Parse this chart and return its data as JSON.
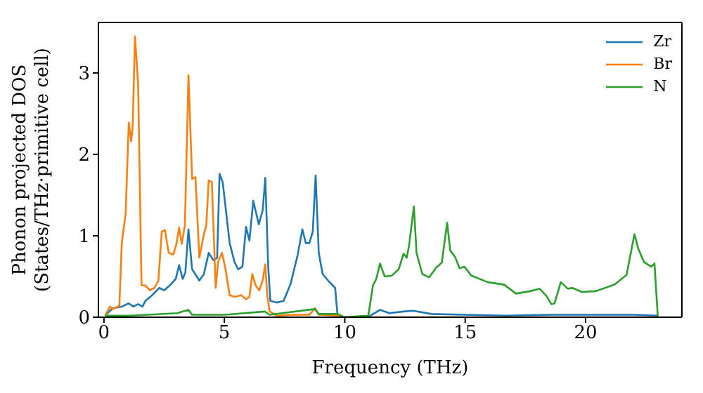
{
  "chart_data": {
    "type": "line",
    "xlabel": "Frequency (THz)",
    "ylabel": "Phonon projected DOS\n(States/THz·primitive cell)",
    "xlim": [
      -0.23,
      24
    ],
    "ylim": [
      0,
      3.62
    ],
    "xticks": [
      0,
      5,
      10,
      15,
      20
    ],
    "yticks": [
      0,
      1,
      2,
      3
    ],
    "legend": "top right",
    "marker": "none",
    "line_style": "solid",
    "series": [
      {
        "name": "Zr",
        "color": "#1f77b4",
        "x": [
          0.05,
          0.36,
          0.74,
          1.03,
          1.22,
          1.42,
          1.6,
          1.72,
          2.0,
          2.3,
          2.5,
          2.8,
          2.98,
          3.12,
          3.27,
          3.38,
          3.51,
          3.66,
          3.96,
          4.15,
          4.35,
          4.54,
          4.7,
          4.8,
          4.93,
          5.22,
          5.42,
          5.57,
          5.75,
          5.9,
          6.04,
          6.2,
          6.43,
          6.59,
          6.7,
          6.82,
          6.91,
          7.17,
          7.46,
          7.75,
          8.04,
          8.24,
          8.38,
          8.53,
          8.67,
          8.79,
          8.92,
          9.08,
          9.31,
          9.6,
          9.7,
          10.0,
          11.0,
          11.07,
          11.46,
          11.85,
          12.44,
          12.83,
          13.6,
          14.97,
          16.7,
          18.66,
          21.98,
          22.95,
          23.0
        ],
        "values": [
          0.02,
          0.11,
          0.13,
          0.17,
          0.13,
          0.16,
          0.13,
          0.2,
          0.27,
          0.36,
          0.33,
          0.41,
          0.47,
          0.64,
          0.47,
          0.55,
          1.08,
          0.59,
          0.45,
          0.53,
          0.79,
          0.7,
          0.73,
          1.76,
          1.66,
          0.91,
          0.68,
          0.59,
          0.62,
          1.11,
          0.94,
          1.43,
          1.14,
          1.31,
          1.71,
          0.62,
          0.2,
          0.18,
          0.2,
          0.41,
          0.76,
          1.08,
          0.91,
          0.91,
          1.05,
          1.74,
          0.79,
          0.53,
          0.45,
          0.36,
          0.02,
          0,
          0,
          0.02,
          0.09,
          0.05,
          0.07,
          0.08,
          0.04,
          0.03,
          0.02,
          0.03,
          0.03,
          0.02,
          0
        ]
      },
      {
        "name": "Br",
        "color": "#ff7f0e",
        "x": [
          0.05,
          0.25,
          0.38,
          0.64,
          0.74,
          0.9,
          1.03,
          1.13,
          1.19,
          1.29,
          1.42,
          1.56,
          1.72,
          1.91,
          2.1,
          2.26,
          2.4,
          2.53,
          2.69,
          2.88,
          3.01,
          3.12,
          3.23,
          3.36,
          3.51,
          3.66,
          3.8,
          3.96,
          4.15,
          4.25,
          4.35,
          4.48,
          4.64,
          4.74,
          4.9,
          5.03,
          5.22,
          5.42,
          5.7,
          5.9,
          6.04,
          6.16,
          6.3,
          6.45,
          6.59,
          6.7,
          6.78,
          6.88,
          7.17,
          7.95,
          8.53,
          8.77,
          8.92,
          9.7,
          10.0,
          23.0
        ],
        "values": [
          0.02,
          0.13,
          0.1,
          0.14,
          0.91,
          1.27,
          2.39,
          2.16,
          2.33,
          3.45,
          2.85,
          0.39,
          0.39,
          0.33,
          0.36,
          0.45,
          1.05,
          1.07,
          0.79,
          0.77,
          0.9,
          1.1,
          0.9,
          1.13,
          2.97,
          1.7,
          1.72,
          0.73,
          1.02,
          1.13,
          1.68,
          1.66,
          0.36,
          0.68,
          0.79,
          0.62,
          0.27,
          0.25,
          0.27,
          0.22,
          0.25,
          0.53,
          0.39,
          0.33,
          0.45,
          0.65,
          0.27,
          0.07,
          0.02,
          0.03,
          0.03,
          0.11,
          0.03,
          0.02,
          0,
          0
        ]
      },
      {
        "name": "N",
        "color": "#2ca02c",
        "x": [
          0.05,
          1.1,
          3.04,
          3.51,
          3.66,
          5.03,
          6.68,
          6.88,
          8.75,
          8.92,
          9.7,
          9.99,
          10.98,
          11.17,
          11.31,
          11.46,
          11.66,
          11.95,
          12.24,
          12.44,
          12.57,
          12.67,
          12.87,
          12.98,
          13.22,
          13.5,
          13.8,
          14.03,
          14.25,
          14.38,
          14.58,
          14.77,
          14.97,
          15.26,
          15.94,
          16.62,
          17.11,
          17.7,
          18.09,
          18.38,
          18.58,
          18.71,
          18.97,
          19.26,
          19.45,
          19.84,
          20.43,
          21.2,
          21.7,
          22.03,
          22.18,
          22.42,
          22.73,
          22.86,
          23.0
        ],
        "values": [
          0.02,
          0.02,
          0.05,
          0.09,
          0.03,
          0.03,
          0.07,
          0.03,
          0.1,
          0.04,
          0.04,
          0,
          0.02,
          0.39,
          0.47,
          0.66,
          0.5,
          0.51,
          0.59,
          0.78,
          0.73,
          0.88,
          1.36,
          0.79,
          0.53,
          0.49,
          0.61,
          0.67,
          1.16,
          0.82,
          0.74,
          0.6,
          0.62,
          0.51,
          0.43,
          0.4,
          0.29,
          0.32,
          0.35,
          0.26,
          0.16,
          0.17,
          0.43,
          0.35,
          0.36,
          0.31,
          0.32,
          0.4,
          0.52,
          1.02,
          0.85,
          0.68,
          0.62,
          0.66,
          0
        ]
      }
    ]
  }
}
